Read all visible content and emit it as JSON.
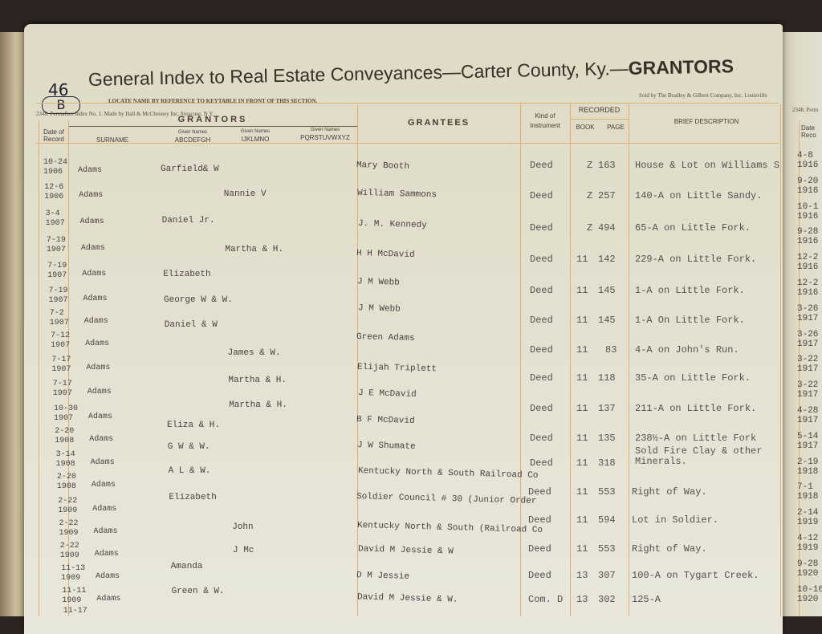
{
  "page_number": "46",
  "page_letter": "B",
  "header": {
    "title": "General Index to Real Estate Conveyances—Carter County, Ky.—",
    "title_bold": "GRANTORS",
    "instruction": "LOCATE NAME BY REFERENCE TO KEYTABLE IN FRONT OF THIS SECTION.",
    "form_note": "2348. Permaflex Index No. 1. Made by Hall & McChesney Inc, Syracuse, N.Y.",
    "seller_note": "Sold by The Bradley & Gilbert Company, Inc. Louisville",
    "right_page_note": "2348. Perm"
  },
  "columns": {
    "date": "Date of Record",
    "grantors": "GRANTORS",
    "surname": "SURNAME",
    "given_label": "Given Names",
    "given_a": "ABCDEFGH",
    "given_i": "IJKLMNO",
    "given_p": "PQRSTUVWXYZ",
    "grantees": "GRANTEES",
    "kind": "Kind of Instrument",
    "recorded": "RECORDED",
    "book": "BOOK",
    "page": "PAGE",
    "description": "BRIEF DESCRIPTION",
    "right_date": "Date Reco"
  },
  "grantor_rows": [
    {
      "date": "10-24\n1906",
      "surname": "Adams",
      "given": "Garfield& W",
      "col": "a"
    },
    {
      "date": "12-6\n1906",
      "surname": "Adams",
      "given": "Nannie V",
      "col": "i"
    },
    {
      "date": "3-4\n1907",
      "surname": "Adams",
      "given": "Daniel Jr.",
      "col": "a"
    },
    {
      "date": "7-19\n1907",
      "surname": "Adams",
      "given": "Martha & H.",
      "col": "i"
    },
    {
      "date": "7-19\n1907",
      "surname": "Adams",
      "given": "Elizabeth",
      "col": "a"
    },
    {
      "date": "7-19\n1907",
      "surname": "Adams",
      "given": "George W & W.",
      "col": "a"
    },
    {
      "date": "7-2\n1907",
      "surname": "Adams",
      "given": "Daniel & W",
      "col": "a"
    },
    {
      "date": "7-12\n1907",
      "surname": "Adams",
      "given": "James & W.",
      "col": "i"
    },
    {
      "date": "7-17\n1907",
      "surname": "Adams",
      "given": "Martha & H.",
      "col": "i"
    },
    {
      "date": "7-17\n1907",
      "surname": "Adams",
      "given": "Martha & H.",
      "col": "i"
    },
    {
      "date": "10-30\n1907",
      "surname": "Adams",
      "given": "Eliza & H.",
      "col": "a"
    },
    {
      "date": "2-20\n1908",
      "surname": "Adams",
      "given": "G W & W.",
      "col": "a"
    },
    {
      "date": "3-14\n1908",
      "surname": "Adams",
      "given": "A L & W.",
      "col": "a"
    },
    {
      "date": "2-20\n1908",
      "surname": "Adams",
      "given": "Elizabeth",
      "col": "a"
    },
    {
      "date": "2-22\n1909",
      "surname": "Adams",
      "given": "John",
      "col": "i"
    },
    {
      "date": "2-22\n1909",
      "surname": "Adams",
      "given": "J Mc",
      "col": "i"
    },
    {
      "date": "2-22\n1909",
      "surname": "Adams",
      "given": "Amanda",
      "col": "a"
    },
    {
      "date": "11-13\n1909",
      "surname": "Adams",
      "given": "Green & W.",
      "col": "a"
    },
    {
      "date": "11-11\n1909",
      "surname": "Adams",
      "given": "",
      "col": "a"
    },
    {
      "date": "11-17",
      "surname": "",
      "given": "",
      "col": "a"
    }
  ],
  "grantees": [
    "Mary Booth",
    "William Sammons",
    "J. M. Kennedy",
    "H H McDavid",
    "J M Webb",
    "J M Webb",
    "Green Adams",
    "Elijah Triplett",
    "J E McDavid",
    "B F McDavid",
    "J W Shumate",
    "Kentucky North & South Railroad Co",
    "Soldier Council # 30 (Junior Order",
    "Kentucky North & South (Railroad Co",
    "David M Jessie & W",
    "D M Jessie",
    "David M Jessie & W."
  ],
  "instruments": [
    {
      "kind": "Deed",
      "book": "Z",
      "page": "163",
      "desc": "House & Lot on Williams St"
    },
    {
      "kind": "Deed",
      "book": "Z",
      "page": "257",
      "desc": "140-A on Little Sandy."
    },
    {
      "kind": "Deed",
      "book": "Z",
      "page": "494",
      "desc": "65-A on Little Fork."
    },
    {
      "kind": "Deed",
      "book": "11",
      "page": "142",
      "desc": "229-A on Little Fork."
    },
    {
      "kind": "Deed",
      "book": "11",
      "page": "145",
      "desc": "1-A on Little Fork."
    },
    {
      "kind": "Deed",
      "book": "11",
      "page": "145",
      "desc": "1-A On Little Fork."
    },
    {
      "kind": "Deed",
      "book": "11",
      "page": "83",
      "desc": "4-A on John's Run."
    },
    {
      "kind": "Deed",
      "book": "11",
      "page": "118",
      "desc": "35-A on Little Fork."
    },
    {
      "kind": "Deed",
      "book": "11",
      "page": "137",
      "desc": "211-A on Little Fork."
    },
    {
      "kind": "Deed",
      "book": "11",
      "page": "135",
      "desc": "238½-A on Little Fork"
    },
    {
      "kind": "Deed",
      "book": "11",
      "page": "318",
      "desc": "Sold Fire Clay & other Minerals."
    },
    {
      "kind": "Deed",
      "book": "11",
      "page": "553",
      "desc": "Right of Way."
    },
    {
      "kind": "Deed",
      "book": "11",
      "page": "594",
      "desc": "Lot in Soldier."
    },
    {
      "kind": "Deed",
      "book": "11",
      "page": "553",
      "desc": "Right of Way."
    },
    {
      "kind": "Deed",
      "book": "13",
      "page": "307",
      "desc": "100-A on Tygart Creek."
    },
    {
      "kind": "Com. D",
      "book": "13",
      "page": "302",
      "desc": "125-A"
    }
  ],
  "right_page_dates": [
    "4-8\n1916",
    "9-20\n1916",
    "10-1\n1916",
    "9-28\n1916",
    "12-2\n1916",
    "12-2\n1916",
    "3-26\n1917",
    "3-26\n1917",
    "3-22\n1917",
    "3-22\n1917",
    "4-28\n1917",
    "5-14\n1917",
    "2-19\n1918",
    "7-1\n1918",
    "2-14\n1919",
    "4-12\n1919",
    "9-28\n1920",
    "10-16\n1920"
  ]
}
